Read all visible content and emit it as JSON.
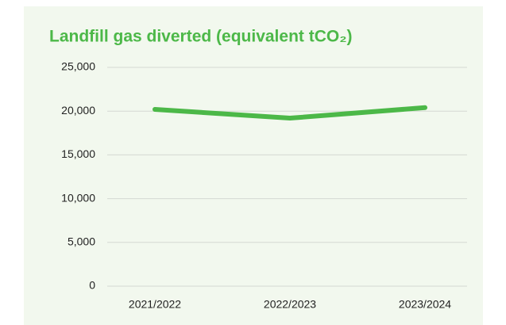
{
  "chart_data": {
    "type": "line",
    "title": "Landfill gas diverted (equivalent tCO₂)",
    "categories": [
      "2021/2022",
      "2022/2023",
      "2023/2024"
    ],
    "series": [
      {
        "name": "Landfill gas diverted",
        "color": "#4cb848",
        "values": [
          20200,
          19200,
          20400
        ]
      }
    ],
    "ylim": [
      0,
      25000
    ],
    "yticks": [
      0,
      {
        "value": 5000,
        "label": "5,000"
      },
      {
        "value": 10000,
        "label": "10,000"
      },
      {
        "value": 15000,
        "label": "15,000"
      },
      {
        "value": 20000,
        "label": "20,000"
      },
      {
        "value": 25000,
        "label": "25,000"
      }
    ],
    "grid": true
  }
}
